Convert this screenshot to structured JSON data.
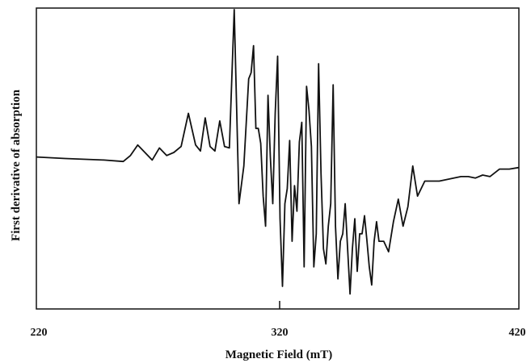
{
  "chart_data": {
    "type": "line",
    "title": "",
    "xlabel": "Magnetic Field (mT)",
    "ylabel": "First derivative of absorption",
    "xlim": [
      220,
      420
    ],
    "ylim": [
      -1,
      1
    ],
    "x_ticks": [
      320
    ],
    "x_tick_labels": [
      "220",
      "320",
      "420"
    ],
    "y_ticks_shown": false,
    "grid": false,
    "legend": "none",
    "series": [
      {
        "color": "#111111",
        "x": [
          220,
          232,
          248,
          256,
          259,
          262,
          265,
          268,
          271,
          274,
          277,
          280,
          283,
          286,
          288,
          290,
          292,
          294,
          296,
          298,
          300,
          302,
          304,
          306,
          308,
          309,
          310,
          311,
          312,
          313,
          314,
          315,
          316,
          317,
          318,
          319,
          320,
          321,
          322,
          323,
          324,
          325,
          326,
          327,
          328,
          329,
          330,
          331,
          332,
          333,
          334,
          335,
          336,
          337,
          338,
          339,
          340,
          341,
          342,
          343,
          344,
          345,
          346,
          347,
          348,
          349,
          350,
          351,
          352,
          353,
          354,
          355,
          356,
          357,
          358,
          359,
          360,
          361,
          362,
          364,
          366,
          368,
          370,
          372,
          374,
          376,
          378,
          381,
          384,
          387,
          390,
          393,
          396,
          399,
          402,
          405,
          408,
          412,
          416,
          420
        ],
        "y": [
          0.01,
          0.0,
          -0.01,
          -0.02,
          0.02,
          0.09,
          0.04,
          -0.01,
          0.07,
          0.02,
          0.04,
          0.08,
          0.3,
          0.09,
          0.05,
          0.27,
          0.08,
          0.05,
          0.25,
          0.08,
          0.07,
          0.99,
          -0.3,
          -0.05,
          0.53,
          0.57,
          0.75,
          0.2,
          0.2,
          0.1,
          -0.25,
          -0.45,
          0.42,
          0.01,
          -0.3,
          0.3,
          0.68,
          -0.4,
          -0.85,
          -0.3,
          -0.2,
          0.12,
          -0.55,
          -0.18,
          -0.35,
          0.11,
          0.24,
          -0.72,
          0.48,
          0.32,
          0.08,
          -0.72,
          -0.5,
          0.63,
          -0.1,
          -0.6,
          -0.7,
          -0.45,
          -0.3,
          0.49,
          -0.45,
          -0.8,
          -0.55,
          -0.5,
          -0.3,
          -0.6,
          -0.9,
          -0.6,
          -0.4,
          -0.75,
          -0.5,
          -0.5,
          -0.38,
          -0.54,
          -0.72,
          -0.84,
          -0.55,
          -0.42,
          -0.55,
          -0.55,
          -0.62,
          -0.42,
          -0.27,
          -0.45,
          -0.32,
          -0.05,
          -0.25,
          -0.15,
          -0.15,
          -0.15,
          -0.14,
          -0.13,
          -0.12,
          -0.12,
          -0.13,
          -0.11,
          -0.12,
          -0.07,
          -0.07,
          -0.06
        ]
      }
    ]
  }
}
